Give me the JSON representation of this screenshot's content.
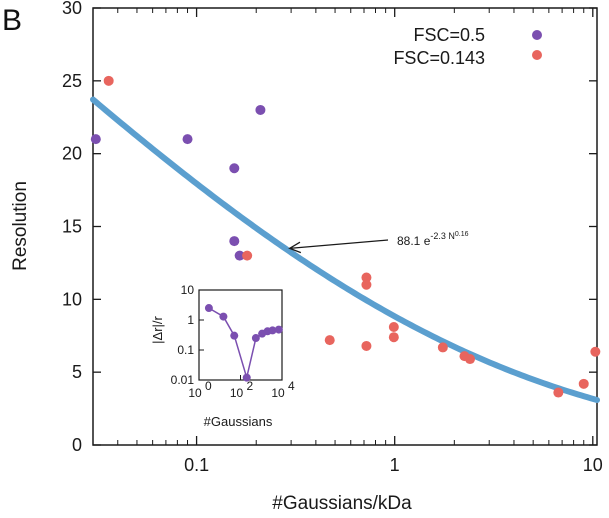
{
  "panel_label": "B",
  "chart_data": [
    {
      "type": "scatter",
      "xlabel": "#Gaussians/kDa",
      "ylabel": "Resolution",
      "xscale": "log",
      "xlim": [
        0.03,
        10.5
      ],
      "ylim": [
        0,
        30
      ],
      "xticks": [
        {
          "value": 0.1,
          "label": "0.1"
        },
        {
          "value": 1,
          "label": "1"
        },
        {
          "value": 10,
          "label": "10"
        }
      ],
      "yticks": [
        0,
        5,
        10,
        15,
        20,
        25,
        30
      ],
      "grid": false,
      "legend_position": "top-right",
      "series": [
        {
          "name": "FSC=0.5",
          "color": "#7B4FB0",
          "points": [
            {
              "x": 0.031,
              "y": 21
            },
            {
              "x": 0.09,
              "y": 21
            },
            {
              "x": 0.155,
              "y": 19
            },
            {
              "x": 0.21,
              "y": 23
            },
            {
              "x": 0.155,
              "y": 14
            },
            {
              "x": 0.165,
              "y": 13
            }
          ]
        },
        {
          "name": "FSC=0.143",
          "color": "#E8655E",
          "points": [
            {
              "x": 0.036,
              "y": 25
            },
            {
              "x": 0.18,
              "y": 13
            },
            {
              "x": 0.47,
              "y": 7.2
            },
            {
              "x": 0.72,
              "y": 11.5
            },
            {
              "x": 0.72,
              "y": 11
            },
            {
              "x": 0.72,
              "y": 6.8
            },
            {
              "x": 0.99,
              "y": 8.1
            },
            {
              "x": 0.99,
              "y": 7.4
            },
            {
              "x": 1.75,
              "y": 6.7
            },
            {
              "x": 2.25,
              "y": 6.1
            },
            {
              "x": 2.4,
              "y": 5.9
            },
            {
              "x": 6.7,
              "y": 3.6
            },
            {
              "x": 9.0,
              "y": 4.2
            },
            {
              "x": 10.3,
              "y": 6.4
            }
          ]
        }
      ],
      "fit": {
        "color": "#5B9FCF",
        "coef": 88.1,
        "exp_coef": -2.3,
        "power": 0.16,
        "annotation_main": "88.1 e",
        "annotation_exp": "-2.3 N",
        "annotation_sup": "0.16",
        "arrow_target": {
          "x": 0.295,
          "y": 13.5
        }
      }
    },
    {
      "type": "line",
      "xlabel": "#Gaussians",
      "ylabel": "|Δr|/r",
      "xscale": "log",
      "yscale": "log",
      "xlim": [
        1,
        10000
      ],
      "ylim": [
        0.01,
        10
      ],
      "xticks": [
        {
          "exp": 0,
          "label": "10"
        },
        {
          "exp": 2,
          "label": "10"
        },
        {
          "exp": 4,
          "label": "10"
        }
      ],
      "xtick_exponents": [
        "0",
        "2",
        "4"
      ],
      "yticks": [
        {
          "value": 0.01,
          "label": "0.01"
        },
        {
          "value": 0.1,
          "label": "0.1"
        },
        {
          "value": 1,
          "label": "1"
        },
        {
          "value": 10,
          "label": "10"
        }
      ],
      "series": [
        {
          "color": "#7B4FB0",
          "points": [
            {
              "x": 3,
              "y": 2.5
            },
            {
              "x": 15,
              "y": 1.3
            },
            {
              "x": 50,
              "y": 0.3
            },
            {
              "x": 200,
              "y": 0.012
            },
            {
              "x": 550,
              "y": 0.25
            },
            {
              "x": 1100,
              "y": 0.35
            },
            {
              "x": 2000,
              "y": 0.42
            },
            {
              "x": 3500,
              "y": 0.45
            },
            {
              "x": 7000,
              "y": 0.48
            }
          ]
        }
      ]
    }
  ]
}
